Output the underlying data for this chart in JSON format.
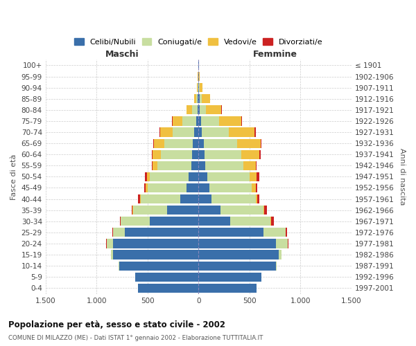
{
  "title": "Popolazione per età, sesso e stato civile - 2002",
  "subtitle": "COMUNE DI MILAZZO (ME) - Dati ISTAT 1° gennaio 2002 - Elaborazione TUTTITALIA.IT",
  "ylabel_left": "Fasce di età",
  "ylabel_right": "Anni di nascita",
  "age_groups": [
    "0-4",
    "5-9",
    "10-14",
    "15-19",
    "20-24",
    "25-29",
    "30-34",
    "35-39",
    "40-44",
    "45-49",
    "50-54",
    "55-59",
    "60-64",
    "65-69",
    "70-74",
    "75-79",
    "80-84",
    "85-89",
    "90-94",
    "95-99",
    "100+"
  ],
  "birth_years": [
    "1997-2001",
    "1992-1996",
    "1987-1991",
    "1982-1986",
    "1977-1981",
    "1972-1976",
    "1967-1971",
    "1962-1966",
    "1957-1961",
    "1952-1956",
    "1947-1951",
    "1942-1946",
    "1937-1941",
    "1932-1936",
    "1927-1931",
    "1922-1926",
    "1917-1921",
    "1912-1916",
    "1907-1911",
    "1902-1906",
    "≤ 1901"
  ],
  "legend_labels": [
    "Celibi/Nubili",
    "Coniugati/e",
    "Vedovi/e",
    "Divorziati/e"
  ],
  "colors": [
    "#3a6faa",
    "#c8dea0",
    "#f0c040",
    "#cc2222"
  ],
  "maschi": {
    "celibi": [
      590,
      620,
      780,
      840,
      840,
      720,
      480,
      310,
      175,
      120,
      95,
      70,
      60,
      55,
      45,
      25,
      10,
      5,
      3,
      2,
      2
    ],
    "coniugati": [
      0,
      0,
      5,
      15,
      60,
      115,
      280,
      330,
      390,
      380,
      380,
      330,
      310,
      280,
      210,
      130,
      50,
      15,
      5,
      2,
      0
    ],
    "vedovi": [
      0,
      0,
      0,
      0,
      2,
      5,
      2,
      5,
      10,
      15,
      30,
      50,
      80,
      100,
      120,
      100,
      60,
      25,
      8,
      2,
      0
    ],
    "divorziati": [
      0,
      0,
      0,
      0,
      2,
      5,
      8,
      10,
      15,
      15,
      20,
      10,
      10,
      10,
      10,
      5,
      0,
      0,
      0,
      0,
      0
    ]
  },
  "femmine": {
    "nubili": [
      570,
      620,
      760,
      790,
      760,
      640,
      310,
      215,
      130,
      105,
      90,
      70,
      60,
      50,
      35,
      25,
      15,
      10,
      5,
      3,
      3
    ],
    "coniugate": [
      0,
      0,
      5,
      25,
      115,
      215,
      395,
      420,
      430,
      420,
      415,
      370,
      360,
      330,
      265,
      175,
      60,
      25,
      8,
      2,
      0
    ],
    "vedove": [
      0,
      0,
      0,
      0,
      2,
      3,
      5,
      10,
      20,
      35,
      65,
      120,
      180,
      230,
      250,
      220,
      150,
      80,
      25,
      5,
      1
    ],
    "divorziate": [
      0,
      0,
      0,
      0,
      5,
      10,
      30,
      30,
      20,
      15,
      25,
      12,
      12,
      10,
      10,
      5,
      2,
      0,
      0,
      0,
      0
    ]
  },
  "xlim": 1500,
  "xticks": [
    -1500,
    -1000,
    -500,
    0,
    500,
    1000,
    1500
  ],
  "xticklabels": [
    "1.500",
    "1.000",
    "500",
    "0",
    "500",
    "1.000",
    "1.500"
  ],
  "bg_color": "#ffffff",
  "grid_color": "#cccccc",
  "maschi_label": "Maschi",
  "femmine_label": "Femmine"
}
